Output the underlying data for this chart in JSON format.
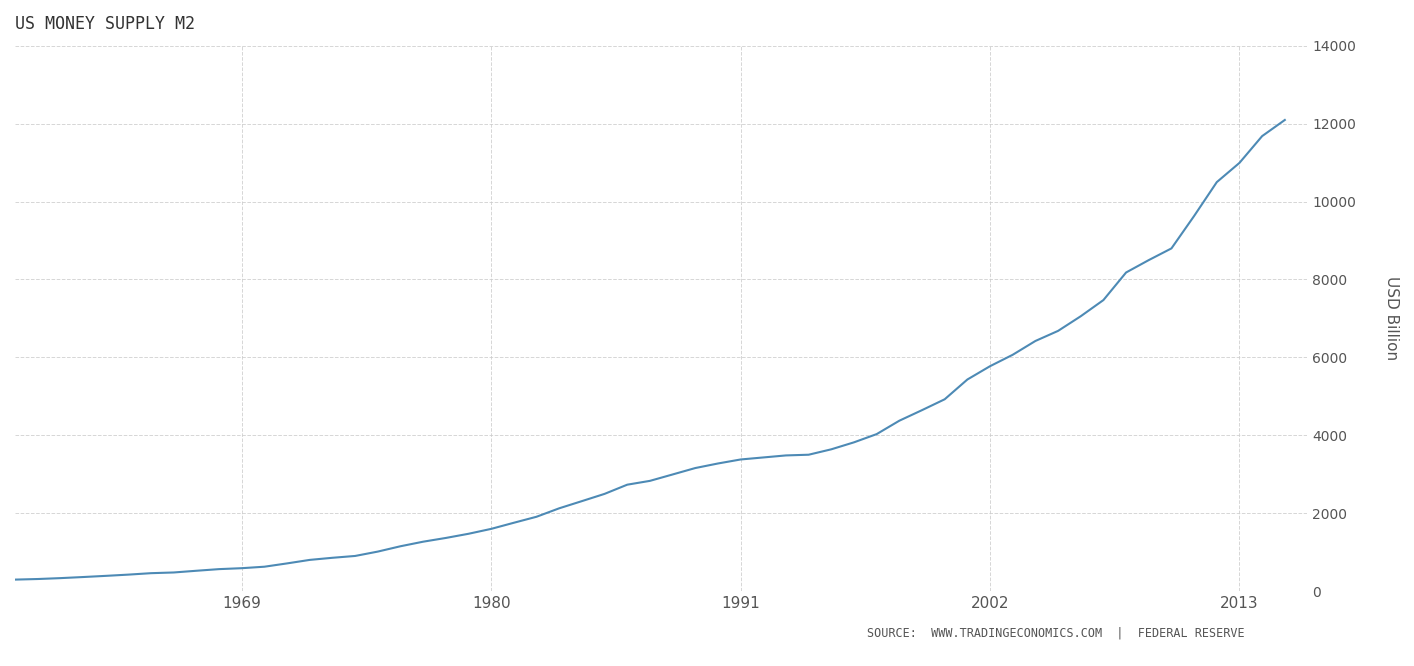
{
  "title": "US MONEY SUPPLY M2",
  "ylabel": "USD Billion",
  "source_text": "SOURCE:  WWW.TRADINGECONOMICS.COM  |  FEDERAL RESERVE",
  "line_color": "#4d8ab5",
  "background_color": "#ffffff",
  "grid_color": "#cccccc",
  "title_color": "#333333",
  "text_color": "#555555",
  "ylim": [
    0,
    14000
  ],
  "yticks": [
    0,
    2000,
    4000,
    6000,
    8000,
    10000,
    12000,
    14000
  ],
  "xtick_labels": [
    "1969",
    "1980",
    "1991",
    "2002",
    "2013"
  ],
  "years": [
    1959,
    1960,
    1961,
    1962,
    1963,
    1964,
    1965,
    1966,
    1967,
    1968,
    1969,
    1970,
    1971,
    1972,
    1973,
    1974,
    1975,
    1976,
    1977,
    1978,
    1979,
    1980,
    1981,
    1982,
    1983,
    1984,
    1985,
    1986,
    1987,
    1988,
    1989,
    1990,
    1991,
    1992,
    1993,
    1994,
    1995,
    1996,
    1997,
    1998,
    1999,
    2000,
    2001,
    2002,
    2003,
    2004,
    2005,
    2006,
    2007,
    2008,
    2009,
    2010,
    2011,
    2012,
    2013,
    2014,
    2015
  ],
  "values": [
    297,
    312,
    335,
    363,
    393,
    425,
    462,
    480,
    524,
    566,
    590,
    628,
    713,
    803,
    857,
    904,
    1016,
    1153,
    1270,
    1366,
    1473,
    1599,
    1756,
    1910,
    2127,
    2311,
    2497,
    2733,
    2831,
    2995,
    3160,
    3277,
    3380,
    3432,
    3484,
    3502,
    3641,
    3820,
    4031,
    4375,
    4646,
    4925,
    5432,
    5774,
    6067,
    6421,
    6680,
    7056,
    7471,
    8179,
    8497,
    8797,
    9629,
    10498,
    10992,
    11679,
    12093
  ]
}
